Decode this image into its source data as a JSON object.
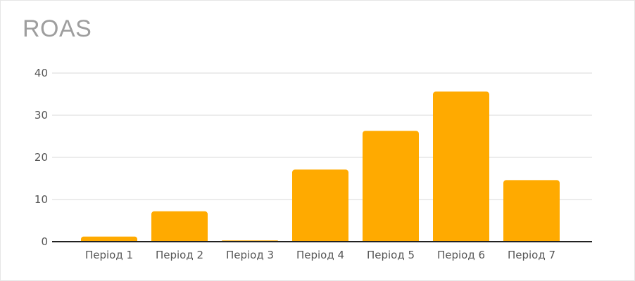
{
  "chart_data": {
    "type": "bar",
    "title": "ROAS",
    "xlabel": "",
    "ylabel": "",
    "categories": [
      "Період 1",
      "Період 2",
      "Період 3",
      "Період 4",
      "Період 5",
      "Період 6",
      "Період 7"
    ],
    "values": [
      1.2,
      7.2,
      0.3,
      17.1,
      26.3,
      35.6,
      14.6
    ],
    "ylim": [
      0,
      40
    ],
    "yticks": [
      "0",
      "10",
      "20",
      "30",
      "40"
    ],
    "grid": true,
    "legend": "none",
    "bar_color": "#FFAA00"
  }
}
